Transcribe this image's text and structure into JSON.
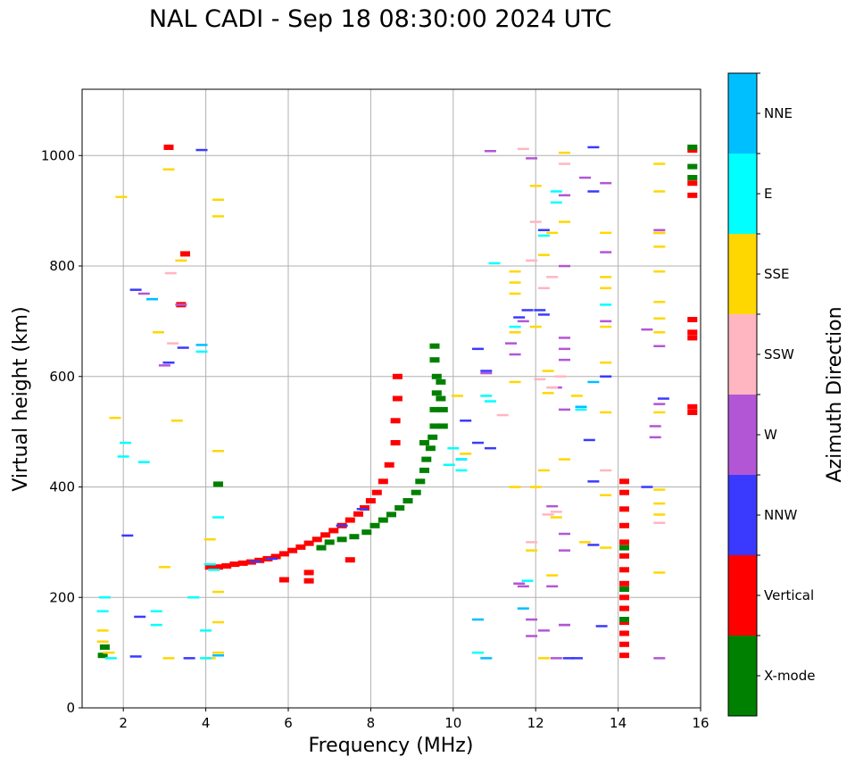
{
  "title": "NAL CADI - Sep 18 08:30:00 2024 UTC",
  "chart_data": {
    "type": "scatter",
    "title": "NAL CADI - Sep 18 08:30:00 2024 UTC",
    "xlabel": "Frequency (MHz)",
    "ylabel": "Virtual height (km)",
    "xlim": [
      1,
      16
    ],
    "ylim": [
      0,
      1120
    ],
    "xticks": [
      2,
      4,
      6,
      8,
      10,
      12,
      14,
      16
    ],
    "yticks": [
      0,
      200,
      400,
      600,
      800,
      1000
    ],
    "grid": true,
    "colorbar": {
      "label": "Azimuth Direction",
      "categories": [
        {
          "name": "X-mode",
          "color": "#008000"
        },
        {
          "name": "Vertical",
          "color": "#ff0000"
        },
        {
          "name": "NNW",
          "color": "#3a3aff"
        },
        {
          "name": "W",
          "color": "#b356d6"
        },
        {
          "name": "SSW",
          "color": "#ffb6c1"
        },
        {
          "name": "SSE",
          "color": "#ffd700"
        },
        {
          "name": "E",
          "color": "#00ffff"
        },
        {
          "name": "NNE",
          "color": "#00bfff"
        }
      ]
    },
    "series": [
      {
        "name": "Vertical",
        "points": [
          [
            4.1,
            255
          ],
          [
            4.3,
            255
          ],
          [
            4.5,
            257
          ],
          [
            4.7,
            260
          ],
          [
            4.9,
            262
          ],
          [
            5.1,
            264
          ],
          [
            5.3,
            267
          ],
          [
            5.5,
            270
          ],
          [
            5.7,
            274
          ],
          [
            5.9,
            279
          ],
          [
            6.1,
            285
          ],
          [
            6.3,
            291
          ],
          [
            6.5,
            298
          ],
          [
            6.7,
            305
          ],
          [
            6.9,
            313
          ],
          [
            7.1,
            321
          ],
          [
            7.3,
            330
          ],
          [
            7.5,
            340
          ],
          [
            7.7,
            351
          ],
          [
            7.85,
            362
          ],
          [
            8.0,
            375
          ],
          [
            8.15,
            390
          ],
          [
            8.3,
            410
          ],
          [
            8.45,
            440
          ],
          [
            8.6,
            480
          ],
          [
            8.6,
            520
          ],
          [
            8.65,
            560
          ],
          [
            8.65,
            600
          ],
          [
            6.5,
            230
          ],
          [
            6.5,
            245
          ],
          [
            7.5,
            268
          ],
          [
            5.9,
            232
          ],
          [
            14.15,
            95
          ],
          [
            14.15,
            115
          ],
          [
            14.15,
            135
          ],
          [
            14.15,
            155
          ],
          [
            14.15,
            180
          ],
          [
            14.15,
            200
          ],
          [
            14.15,
            225
          ],
          [
            14.15,
            250
          ],
          [
            14.15,
            275
          ],
          [
            14.15,
            300
          ],
          [
            14.15,
            330
          ],
          [
            14.15,
            360
          ],
          [
            14.15,
            390
          ],
          [
            14.15,
            410
          ],
          [
            15.8,
            535
          ],
          [
            15.8,
            545
          ],
          [
            15.8,
            670
          ],
          [
            15.8,
            680
          ],
          [
            15.8,
            703
          ],
          [
            15.8,
            928
          ],
          [
            15.8,
            950
          ],
          [
            15.8,
            1010
          ],
          [
            3.4,
            730
          ],
          [
            3.5,
            822
          ],
          [
            3.1,
            1015
          ]
        ]
      },
      {
        "name": "X-mode",
        "points": [
          [
            7.0,
            300
          ],
          [
            7.3,
            305
          ],
          [
            7.6,
            310
          ],
          [
            7.9,
            318
          ],
          [
            8.1,
            330
          ],
          [
            8.3,
            340
          ],
          [
            8.5,
            350
          ],
          [
            8.7,
            362
          ],
          [
            8.9,
            375
          ],
          [
            9.1,
            390
          ],
          [
            9.2,
            410
          ],
          [
            9.3,
            430
          ],
          [
            9.35,
            450
          ],
          [
            9.45,
            470
          ],
          [
            9.5,
            490
          ],
          [
            9.55,
            510
          ],
          [
            9.55,
            540
          ],
          [
            9.6,
            570
          ],
          [
            9.6,
            600
          ],
          [
            9.55,
            630
          ],
          [
            9.55,
            655
          ],
          [
            9.7,
            590
          ],
          [
            9.7,
            560
          ],
          [
            9.75,
            540
          ],
          [
            9.75,
            510
          ],
          [
            6.8,
            290
          ],
          [
            9.3,
            480
          ],
          [
            1.5,
            95
          ],
          [
            1.55,
            110
          ],
          [
            4.3,
            405
          ],
          [
            14.15,
            160
          ],
          [
            14.15,
            215
          ],
          [
            14.15,
            290
          ],
          [
            15.8,
            960
          ],
          [
            15.8,
            980
          ],
          [
            15.8,
            1015
          ]
        ]
      },
      {
        "name": "NNW",
        "points": [
          [
            3.9,
            1010
          ],
          [
            2.3,
            757
          ],
          [
            3.45,
            652
          ],
          [
            3.1,
            625
          ],
          [
            2.1,
            312
          ],
          [
            2.4,
            165
          ],
          [
            3.6,
            90
          ],
          [
            2.3,
            93
          ],
          [
            5.2,
            265
          ],
          [
            5.6,
            270
          ],
          [
            7.8,
            360
          ],
          [
            7.3,
            330
          ],
          [
            12.2,
            865
          ],
          [
            12.2,
            712
          ],
          [
            12.1,
            720
          ],
          [
            13.4,
            1015
          ],
          [
            13.4,
            935
          ],
          [
            13.7,
            600
          ],
          [
            13.3,
            485
          ],
          [
            13.4,
            410
          ],
          [
            13.4,
            295
          ],
          [
            13.6,
            148
          ],
          [
            12.8,
            90
          ],
          [
            13.0,
            90
          ],
          [
            12.7,
            150
          ],
          [
            11.8,
            720
          ],
          [
            11.6,
            707
          ],
          [
            10.8,
            610
          ],
          [
            10.6,
            650
          ],
          [
            10.3,
            520
          ],
          [
            10.6,
            480
          ],
          [
            10.9,
            470
          ],
          [
            10.2,
            450
          ],
          [
            14.7,
            400
          ],
          [
            15.1,
            560
          ]
        ]
      },
      {
        "name": "W",
        "points": [
          [
            3.4,
            730
          ],
          [
            2.5,
            750
          ],
          [
            3.0,
            620
          ],
          [
            12.7,
            800
          ],
          [
            12.7,
            670
          ],
          [
            12.7,
            650
          ],
          [
            12.7,
            630
          ],
          [
            12.5,
            580
          ],
          [
            12.7,
            540
          ],
          [
            12.4,
            365
          ],
          [
            12.7,
            315
          ],
          [
            12.7,
            285
          ],
          [
            12.4,
            220
          ],
          [
            12.7,
            150
          ],
          [
            12.2,
            140
          ],
          [
            12.5,
            90
          ],
          [
            11.9,
            160
          ],
          [
            11.9,
            130
          ],
          [
            13.7,
            950
          ],
          [
            13.2,
            960
          ],
          [
            13.7,
            825
          ],
          [
            13.7,
            700
          ],
          [
            15.0,
            865
          ],
          [
            15.0,
            860
          ],
          [
            14.7,
            685
          ],
          [
            15.0,
            655
          ],
          [
            15.0,
            550
          ],
          [
            14.9,
            510
          ],
          [
            14.9,
            490
          ],
          [
            15.0,
            90
          ],
          [
            12.7,
            928
          ],
          [
            11.7,
            700
          ],
          [
            11.4,
            660
          ],
          [
            11.5,
            640
          ],
          [
            10.8,
            606
          ],
          [
            10.9,
            1008
          ],
          [
            11.9,
            995
          ],
          [
            11.7,
            220
          ],
          [
            11.6,
            225
          ]
        ]
      },
      {
        "name": "SSW",
        "points": [
          [
            3.15,
            787
          ],
          [
            3.2,
            660
          ],
          [
            12.0,
            880
          ],
          [
            12.4,
            780
          ],
          [
            12.2,
            760
          ],
          [
            12.6,
            600
          ],
          [
            12.4,
            580
          ],
          [
            11.9,
            300
          ],
          [
            12.3,
            350
          ],
          [
            12.5,
            355
          ],
          [
            13.7,
            430
          ],
          [
            15.0,
            335
          ],
          [
            12.7,
            985
          ],
          [
            11.2,
            530
          ],
          [
            11.9,
            810
          ],
          [
            12.1,
            595
          ],
          [
            11.7,
            1012
          ]
        ]
      },
      {
        "name": "SSE",
        "points": [
          [
            1.5,
            140
          ],
          [
            1.5,
            120
          ],
          [
            1.65,
            100
          ],
          [
            1.95,
            925
          ],
          [
            1.8,
            525
          ],
          [
            2.85,
            680
          ],
          [
            3.1,
            975
          ],
          [
            3.4,
            810
          ],
          [
            4.3,
            920
          ],
          [
            4.3,
            890
          ],
          [
            4.3,
            465
          ],
          [
            4.3,
            210
          ],
          [
            4.3,
            155
          ],
          [
            4.3,
            100
          ],
          [
            4.1,
            90
          ],
          [
            4.1,
            305
          ],
          [
            12.7,
            1005
          ],
          [
            12.7,
            880
          ],
          [
            12.4,
            860
          ],
          [
            12.2,
            820
          ],
          [
            12.0,
            945
          ],
          [
            12.0,
            690
          ],
          [
            12.3,
            610
          ],
          [
            12.3,
            570
          ],
          [
            12.2,
            430
          ],
          [
            12.0,
            400
          ],
          [
            12.5,
            345
          ],
          [
            12.4,
            240
          ],
          [
            12.2,
            90
          ],
          [
            12.7,
            450
          ],
          [
            13.0,
            565
          ],
          [
            13.7,
            860
          ],
          [
            13.7,
            780
          ],
          [
            13.7,
            760
          ],
          [
            13.7,
            690
          ],
          [
            13.7,
            625
          ],
          [
            13.7,
            535
          ],
          [
            13.7,
            385
          ],
          [
            13.7,
            290
          ],
          [
            13.2,
            300
          ],
          [
            15.0,
            985
          ],
          [
            15.0,
            935
          ],
          [
            15.0,
            860
          ],
          [
            15.0,
            835
          ],
          [
            15.0,
            790
          ],
          [
            15.0,
            735
          ],
          [
            15.0,
            705
          ],
          [
            15.0,
            680
          ],
          [
            15.0,
            535
          ],
          [
            15.0,
            395
          ],
          [
            15.0,
            370
          ],
          [
            15.0,
            350
          ],
          [
            15.0,
            245
          ],
          [
            11.5,
            790
          ],
          [
            11.5,
            770
          ],
          [
            11.5,
            750
          ],
          [
            11.5,
            680
          ],
          [
            11.5,
            590
          ],
          [
            11.5,
            400
          ],
          [
            11.9,
            285
          ],
          [
            10.1,
            565
          ],
          [
            10.3,
            460
          ],
          [
            3.1,
            90
          ],
          [
            3.0,
            255
          ],
          [
            3.3,
            520
          ]
        ]
      },
      {
        "name": "E",
        "points": [
          [
            1.5,
            175
          ],
          [
            1.55,
            200
          ],
          [
            1.7,
            90
          ],
          [
            2.0,
            455
          ],
          [
            2.05,
            480
          ],
          [
            2.5,
            445
          ],
          [
            2.7,
            740
          ],
          [
            2.8,
            150
          ],
          [
            2.8,
            175
          ],
          [
            4.3,
            345
          ],
          [
            4.0,
            90
          ],
          [
            4.0,
            140
          ],
          [
            3.9,
            645
          ],
          [
            3.7,
            200
          ],
          [
            10.2,
            430
          ],
          [
            10.2,
            450
          ],
          [
            10.0,
            470
          ],
          [
            9.9,
            440
          ],
          [
            10.6,
            100
          ],
          [
            10.8,
            565
          ],
          [
            10.9,
            555
          ],
          [
            11.0,
            805
          ],
          [
            12.5,
            915
          ],
          [
            12.5,
            935
          ],
          [
            12.2,
            855
          ],
          [
            11.5,
            690
          ],
          [
            11.8,
            230
          ],
          [
            13.7,
            730
          ],
          [
            13.1,
            540
          ],
          [
            4.1,
            260
          ],
          [
            4.2,
            250
          ]
        ]
      },
      {
        "name": "NNE",
        "points": [
          [
            10.6,
            160
          ],
          [
            10.8,
            90
          ],
          [
            13.1,
            545
          ],
          [
            13.4,
            590
          ],
          [
            3.9,
            657
          ],
          [
            2.7,
            740
          ],
          [
            4.3,
            95
          ],
          [
            11.7,
            180
          ]
        ]
      }
    ]
  }
}
